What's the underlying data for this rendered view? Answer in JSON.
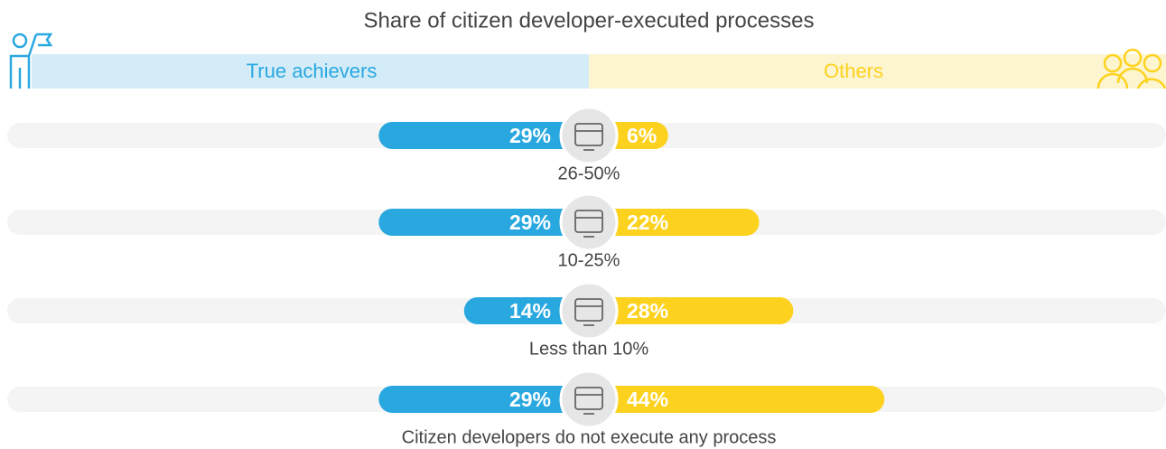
{
  "chart_data": {
    "type": "diverging-bar",
    "title": "Share of citizen developer-executed processes",
    "categories": [
      "26-50%",
      "10-25%",
      "Less than 10%",
      "Citizen developers do not execute any process"
    ],
    "series": [
      {
        "name": "True achievers",
        "color": "#29a8e0",
        "values": [
          29,
          29,
          14,
          29
        ],
        "value_labels": [
          "29%",
          "29%",
          "14%",
          "29%"
        ]
      },
      {
        "name": "Others",
        "color": "#fdd21f",
        "values": [
          6,
          22,
          28,
          44
        ],
        "value_labels": [
          "6%",
          "22%",
          "28%",
          "44%"
        ]
      }
    ]
  }
}
